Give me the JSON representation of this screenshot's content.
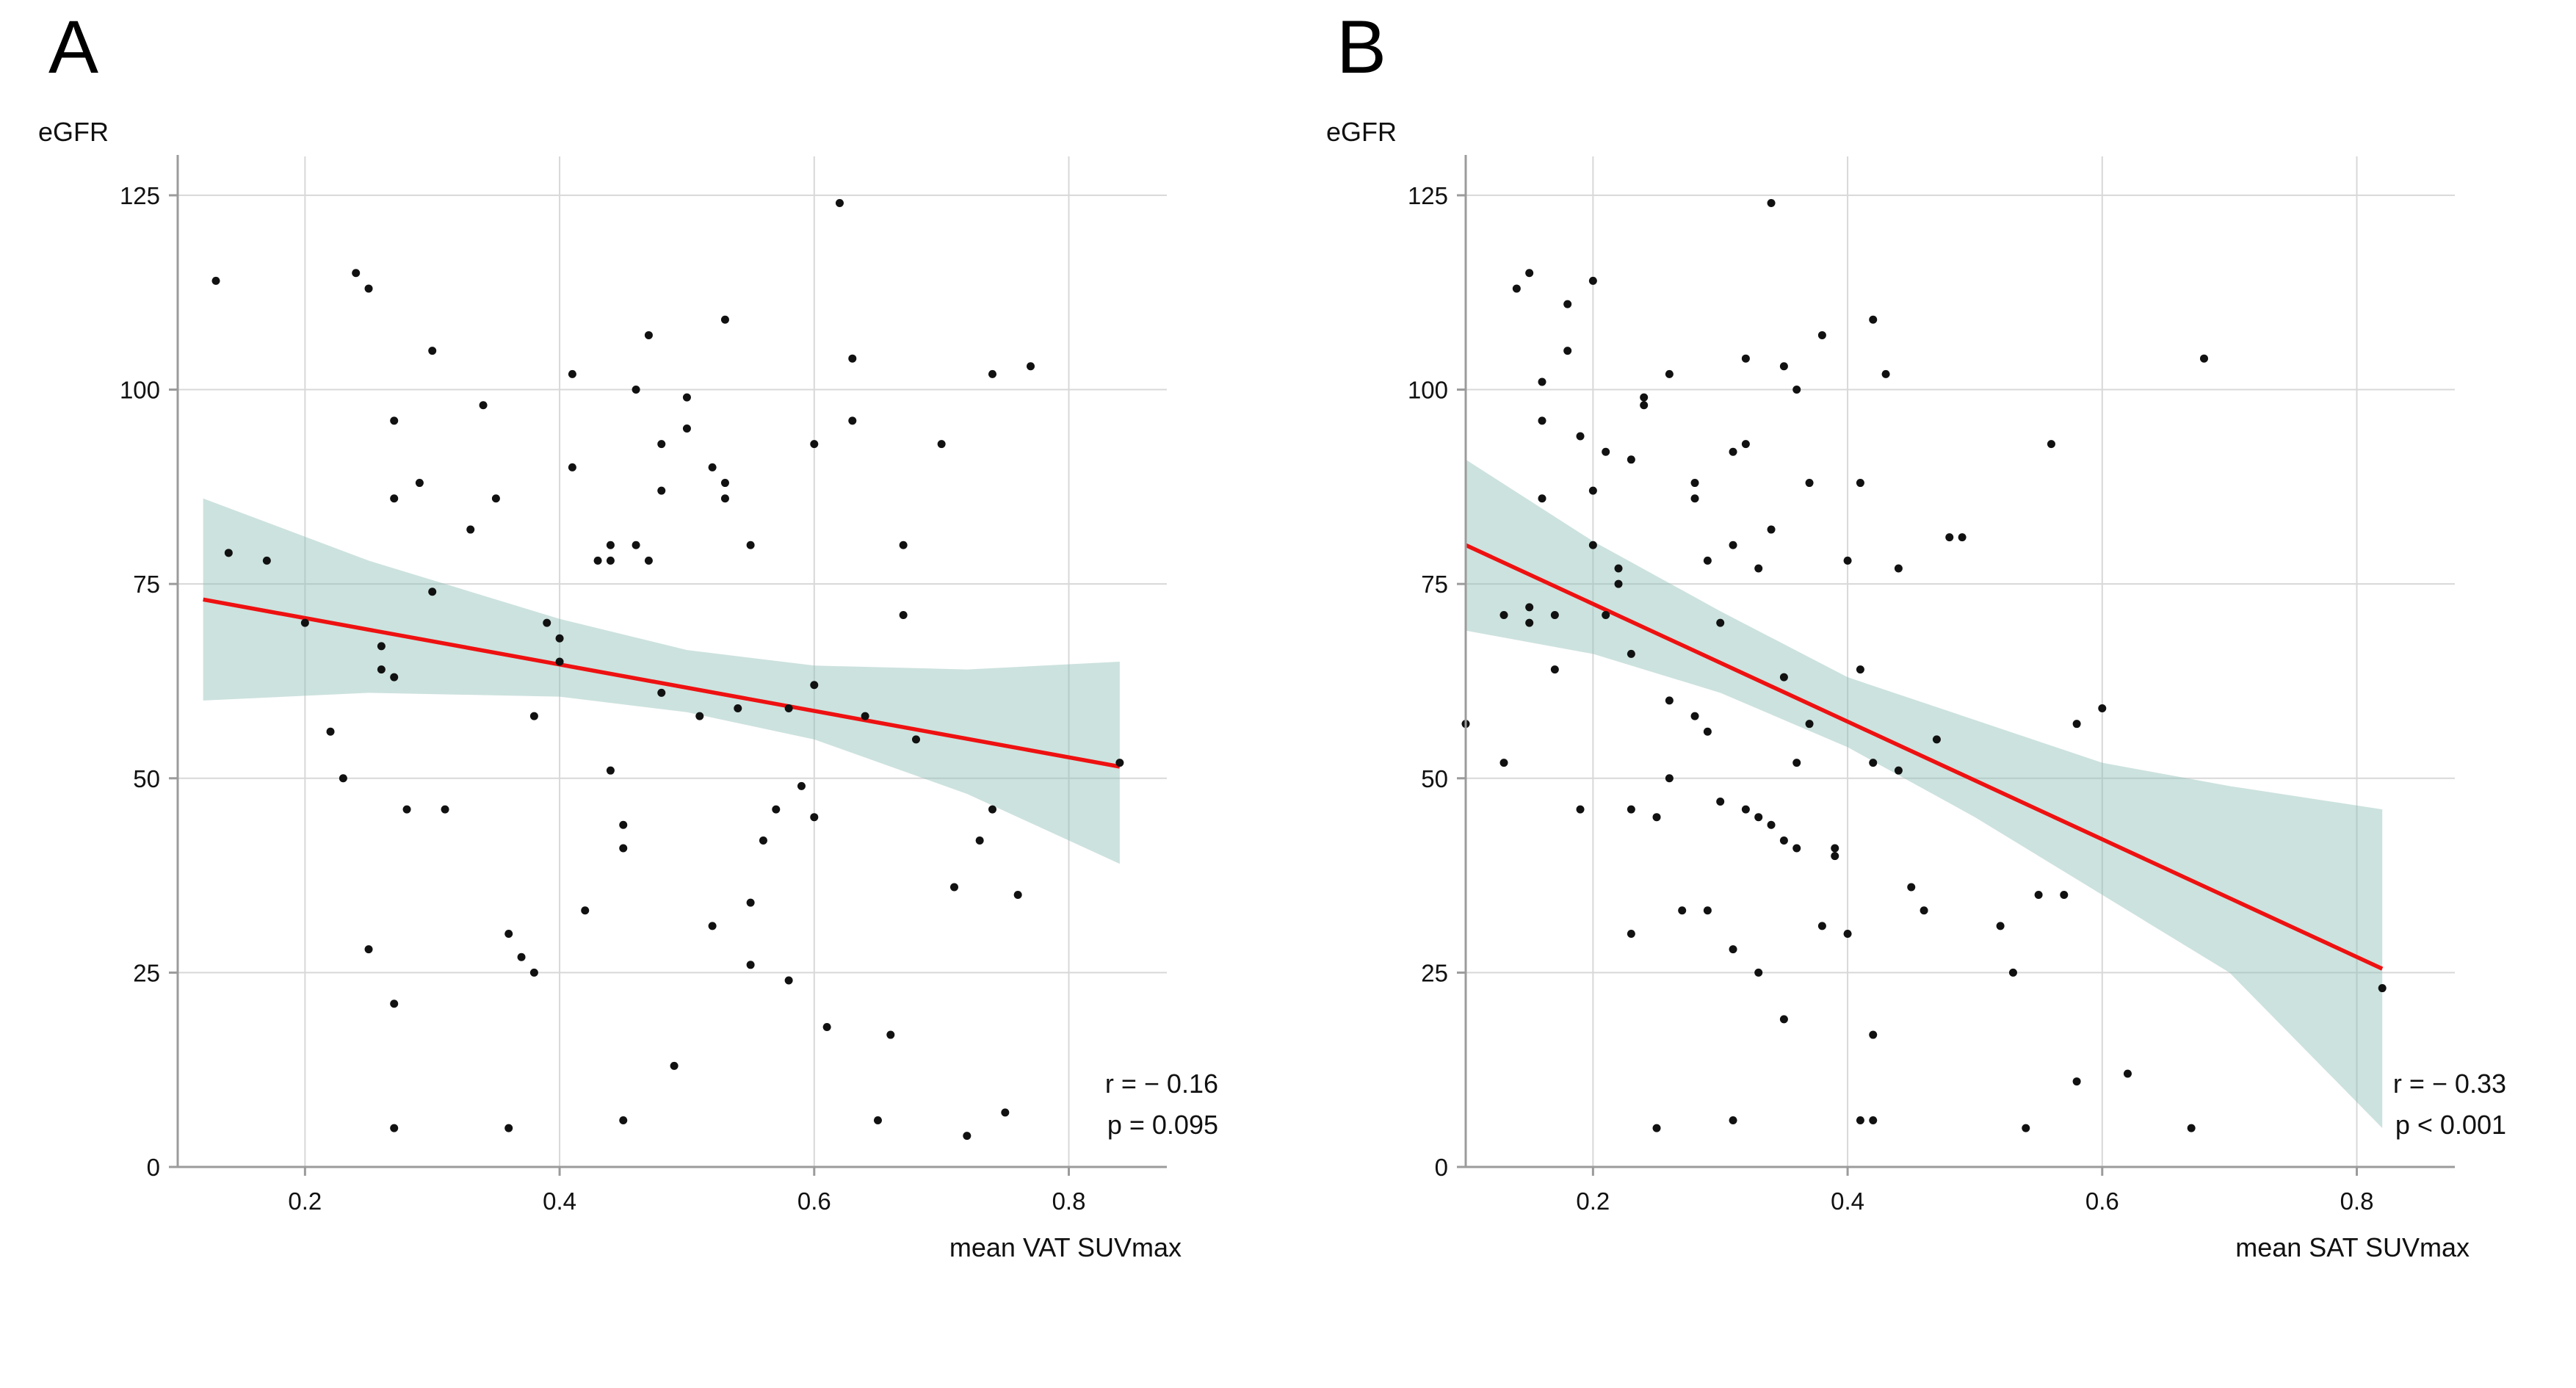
{
  "figure": {
    "background": "#ffffff"
  },
  "colors": {
    "regression_line": "#ee1111",
    "confidence_band": "#8fbfb5",
    "band_opacity": 0.45,
    "grid": "#d8d8d8",
    "axis": "#9b9b9b",
    "point": "#111111",
    "text": "#111111"
  },
  "chart_data": [
    {
      "type": "scatter",
      "panel_label": "A",
      "xlabel": "mean VAT SUVmax",
      "ylabel": "eGFR",
      "xlim": [
        0.1,
        0.877
      ],
      "ylim": [
        0,
        130
      ],
      "xticks": [
        0.2,
        0.4,
        0.6,
        0.8
      ],
      "xtick_labels": [
        "0.2",
        "0.4",
        "0.6",
        "0.8"
      ],
      "yticks": [
        0,
        25,
        50,
        75,
        100,
        125
      ],
      "ytick_labels": [
        "0",
        "25",
        "50",
        "75",
        "100",
        "125"
      ],
      "grid": true,
      "annotation_lines": [
        "r = − 0.16",
        "p = 0.095"
      ],
      "regression": {
        "x1": 0.12,
        "y1": 73,
        "x2": 0.84,
        "y2": 51.5
      },
      "confidence_band": [
        [
          0.12,
          60,
          86
        ],
        [
          0.25,
          61,
          78
        ],
        [
          0.4,
          60.5,
          70.5
        ],
        [
          0.5,
          58.5,
          66.5
        ],
        [
          0.6,
          55,
          64.5
        ],
        [
          0.72,
          48,
          64
        ],
        [
          0.84,
          39,
          65
        ]
      ],
      "points": [
        [
          0.13,
          114
        ],
        [
          0.14,
          79
        ],
        [
          0.17,
          78
        ],
        [
          0.2,
          70
        ],
        [
          0.22,
          56
        ],
        [
          0.23,
          50
        ],
        [
          0.24,
          115
        ],
        [
          0.25,
          113
        ],
        [
          0.25,
          28
        ],
        [
          0.26,
          67
        ],
        [
          0.26,
          64
        ],
        [
          0.27,
          96
        ],
        [
          0.27,
          86
        ],
        [
          0.27,
          63
        ],
        [
          0.28,
          46
        ],
        [
          0.27,
          21
        ],
        [
          0.27,
          5
        ],
        [
          0.29,
          88
        ],
        [
          0.3,
          105
        ],
        [
          0.3,
          74
        ],
        [
          0.31,
          46
        ],
        [
          0.33,
          82
        ],
        [
          0.34,
          98
        ],
        [
          0.35,
          86
        ],
        [
          0.36,
          30
        ],
        [
          0.36,
          5
        ],
        [
          0.37,
          27
        ],
        [
          0.38,
          58
        ],
        [
          0.38,
          25
        ],
        [
          0.39,
          70
        ],
        [
          0.4,
          68
        ],
        [
          0.4,
          65
        ],
        [
          0.41,
          102
        ],
        [
          0.41,
          90
        ],
        [
          0.42,
          33
        ],
        [
          0.43,
          78
        ],
        [
          0.44,
          80
        ],
        [
          0.44,
          78
        ],
        [
          0.44,
          51
        ],
        [
          0.45,
          44
        ],
        [
          0.45,
          41
        ],
        [
          0.45,
          6
        ],
        [
          0.46,
          100
        ],
        [
          0.46,
          80
        ],
        [
          0.47,
          107
        ],
        [
          0.47,
          78
        ],
        [
          0.48,
          93
        ],
        [
          0.48,
          87
        ],
        [
          0.48,
          61
        ],
        [
          0.49,
          13
        ],
        [
          0.5,
          99
        ],
        [
          0.5,
          95
        ],
        [
          0.51,
          58
        ],
        [
          0.52,
          90
        ],
        [
          0.52,
          31
        ],
        [
          0.53,
          109
        ],
        [
          0.53,
          88
        ],
        [
          0.53,
          86
        ],
        [
          0.54,
          59
        ],
        [
          0.55,
          80
        ],
        [
          0.55,
          34
        ],
        [
          0.55,
          26
        ],
        [
          0.56,
          42
        ],
        [
          0.57,
          46
        ],
        [
          0.58,
          59
        ],
        [
          0.58,
          24
        ],
        [
          0.59,
          49
        ],
        [
          0.6,
          93
        ],
        [
          0.6,
          62
        ],
        [
          0.6,
          45
        ],
        [
          0.61,
          18
        ],
        [
          0.62,
          124
        ],
        [
          0.63,
          104
        ],
        [
          0.63,
          96
        ],
        [
          0.64,
          58
        ],
        [
          0.65,
          6
        ],
        [
          0.66,
          17
        ],
        [
          0.67,
          80
        ],
        [
          0.67,
          71
        ],
        [
          0.68,
          55
        ],
        [
          0.7,
          93
        ],
        [
          0.71,
          36
        ],
        [
          0.72,
          4
        ],
        [
          0.73,
          42
        ],
        [
          0.74,
          102
        ],
        [
          0.74,
          46
        ],
        [
          0.75,
          7
        ],
        [
          0.76,
          35
        ],
        [
          0.77,
          103
        ],
        [
          0.84,
          52
        ]
      ]
    },
    {
      "type": "scatter",
      "panel_label": "B",
      "xlabel": "mean SAT SUVmax",
      "ylabel": "eGFR",
      "xlim": [
        0.1,
        0.877
      ],
      "ylim": [
        0,
        130
      ],
      "xticks": [
        0.2,
        0.4,
        0.6,
        0.8
      ],
      "xtick_labels": [
        "0.2",
        "0.4",
        "0.6",
        "0.8"
      ],
      "yticks": [
        0,
        25,
        50,
        75,
        100,
        125
      ],
      "ytick_labels": [
        "0",
        "25",
        "50",
        "75",
        "100",
        "125"
      ],
      "grid": true,
      "annotation_lines": [
        "r = − 0.33",
        "p < 0.001"
      ],
      "regression": {
        "x1": 0.1,
        "y1": 80,
        "x2": 0.82,
        "y2": 25.5
      },
      "confidence_band": [
        [
          0.1,
          69,
          91
        ],
        [
          0.2,
          66,
          80.5
        ],
        [
          0.3,
          61,
          71.5
        ],
        [
          0.4,
          54,
          63
        ],
        [
          0.5,
          45,
          57.5
        ],
        [
          0.6,
          35,
          52
        ],
        [
          0.7,
          25,
          49
        ],
        [
          0.82,
          5,
          46
        ]
      ],
      "points": [
        [
          0.1,
          57
        ],
        [
          0.13,
          71
        ],
        [
          0.13,
          52
        ],
        [
          0.14,
          113
        ],
        [
          0.15,
          115
        ],
        [
          0.15,
          72
        ],
        [
          0.15,
          70
        ],
        [
          0.16,
          101
        ],
        [
          0.16,
          96
        ],
        [
          0.16,
          86
        ],
        [
          0.17,
          71
        ],
        [
          0.17,
          64
        ],
        [
          0.18,
          111
        ],
        [
          0.18,
          105
        ],
        [
          0.19,
          94
        ],
        [
          0.19,
          46
        ],
        [
          0.2,
          114
        ],
        [
          0.2,
          87
        ],
        [
          0.2,
          80
        ],
        [
          0.21,
          92
        ],
        [
          0.21,
          71
        ],
        [
          0.22,
          77
        ],
        [
          0.22,
          75
        ],
        [
          0.23,
          91
        ],
        [
          0.23,
          66
        ],
        [
          0.23,
          46
        ],
        [
          0.23,
          30
        ],
        [
          0.24,
          99
        ],
        [
          0.24,
          98
        ],
        [
          0.25,
          45
        ],
        [
          0.25,
          5
        ],
        [
          0.26,
          102
        ],
        [
          0.26,
          60
        ],
        [
          0.26,
          50
        ],
        [
          0.27,
          33
        ],
        [
          0.28,
          88
        ],
        [
          0.28,
          86
        ],
        [
          0.28,
          58
        ],
        [
          0.29,
          78
        ],
        [
          0.29,
          56
        ],
        [
          0.29,
          33
        ],
        [
          0.3,
          70
        ],
        [
          0.3,
          47
        ],
        [
          0.31,
          92
        ],
        [
          0.31,
          80
        ],
        [
          0.31,
          28
        ],
        [
          0.31,
          6
        ],
        [
          0.32,
          104
        ],
        [
          0.32,
          93
        ],
        [
          0.32,
          46
        ],
        [
          0.33,
          77
        ],
        [
          0.33,
          45
        ],
        [
          0.33,
          25
        ],
        [
          0.34,
          124
        ],
        [
          0.34,
          82
        ],
        [
          0.34,
          44
        ],
        [
          0.35,
          103
        ],
        [
          0.35,
          63
        ],
        [
          0.35,
          42
        ],
        [
          0.35,
          19
        ],
        [
          0.36,
          100
        ],
        [
          0.36,
          52
        ],
        [
          0.36,
          41
        ],
        [
          0.37,
          88
        ],
        [
          0.37,
          57
        ],
        [
          0.38,
          107
        ],
        [
          0.38,
          31
        ],
        [
          0.39,
          41
        ],
        [
          0.39,
          40
        ],
        [
          0.4,
          78
        ],
        [
          0.4,
          30
        ],
        [
          0.41,
          88
        ],
        [
          0.41,
          64
        ],
        [
          0.41,
          6
        ],
        [
          0.42,
          109
        ],
        [
          0.42,
          52
        ],
        [
          0.42,
          17
        ],
        [
          0.42,
          6
        ],
        [
          0.43,
          102
        ],
        [
          0.44,
          77
        ],
        [
          0.44,
          51
        ],
        [
          0.45,
          36
        ],
        [
          0.46,
          33
        ],
        [
          0.47,
          55
        ],
        [
          0.48,
          81
        ],
        [
          0.49,
          81
        ],
        [
          0.52,
          31
        ],
        [
          0.53,
          25
        ],
        [
          0.54,
          5
        ],
        [
          0.55,
          35
        ],
        [
          0.56,
          93
        ],
        [
          0.57,
          35
        ],
        [
          0.58,
          57
        ],
        [
          0.58,
          11
        ],
        [
          0.6,
          59
        ],
        [
          0.62,
          12
        ],
        [
          0.67,
          5
        ],
        [
          0.68,
          104
        ],
        [
          0.82,
          23
        ]
      ]
    }
  ]
}
